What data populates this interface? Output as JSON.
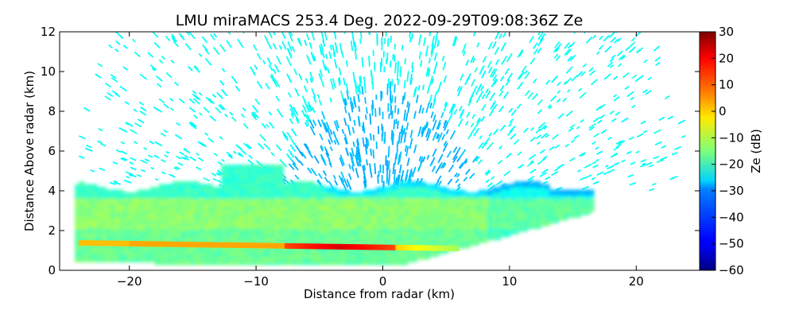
{
  "chart_data": {
    "type": "heatmap",
    "title": "LMU miraMACS 253.4 Deg. 2022-09-29T09:08:36Z  Ze",
    "xlabel": "Distance from radar (km)",
    "ylabel": "Distance Above radar  (km)",
    "xlim": [
      -25.5,
      25
    ],
    "ylim": [
      0,
      12
    ],
    "xticks": [
      -20,
      -10,
      0,
      10,
      20
    ],
    "xtick_labels": [
      "−20",
      "−10",
      "0",
      "10",
      "20"
    ],
    "yticks": [
      0,
      2,
      4,
      6,
      8,
      10,
      12
    ],
    "ytick_labels": [
      "0",
      "2",
      "4",
      "6",
      "8",
      "10",
      "12"
    ],
    "colorbar": {
      "label": "Ze (dB)",
      "colormap": "jet",
      "range": [
        -60,
        30
      ],
      "ticks": [
        30,
        20,
        10,
        0,
        -10,
        -20,
        -30,
        -40,
        -50,
        -60
      ],
      "tick_labels": [
        "30",
        "20",
        "10",
        "0",
        "−10",
        "−20",
        "−30",
        "−40",
        "−50",
        "−60"
      ]
    },
    "scan": {
      "type": "RHI",
      "azimuth_deg": 253.4,
      "origin_km": [
        0,
        0
      ],
      "max_range_km": 24.5,
      "min_elevation_deg": 10
    },
    "features": [
      {
        "name": "cloud layer",
        "x_range_km": [
          -24,
          17
        ],
        "height_km": [
          1.5,
          4.2
        ],
        "ze_db": -20
      },
      {
        "name": "bright band",
        "x_range_km": [
          -24,
          7
        ],
        "height_km": [
          1.0,
          1.5
        ],
        "ze_db": 10
      },
      {
        "name": "clear air / noise",
        "height_km": [
          4.2,
          12
        ],
        "ze_db": -28
      }
    ],
    "grid": false
  }
}
